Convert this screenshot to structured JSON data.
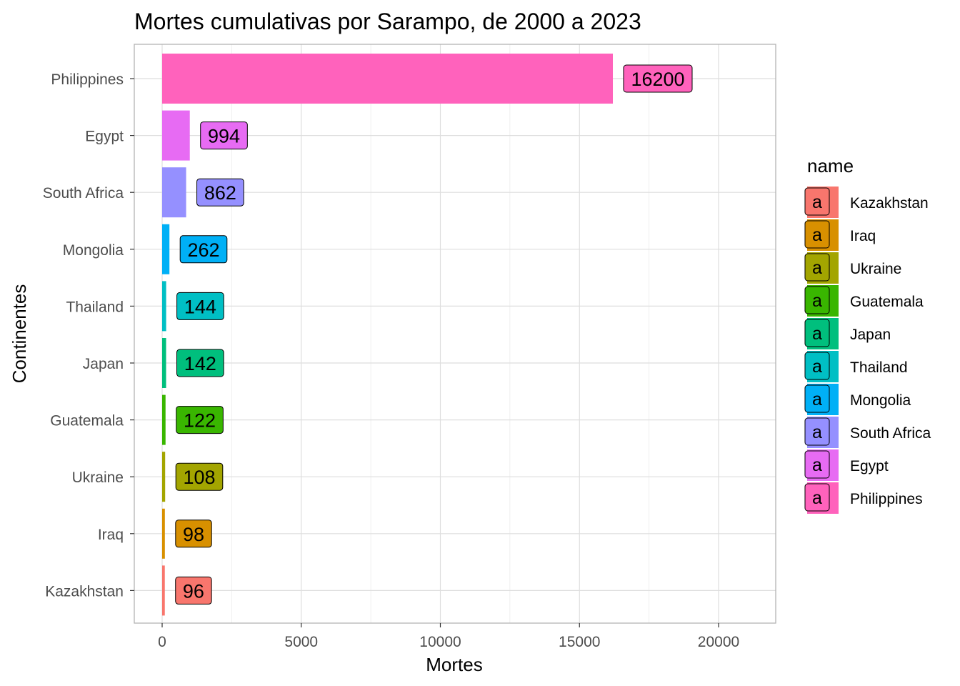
{
  "chart_data": {
    "type": "bar",
    "orientation": "horizontal",
    "title": "Mortes cumulativas por Sarampo, de 2000 a 2023",
    "xlabel": "Mortes",
    "ylabel": "Continentes",
    "xlim": [
      -1000,
      22000
    ],
    "xticks": [
      0,
      5000,
      10000,
      15000,
      20000
    ],
    "grid": true,
    "categories": [
      "Philippines",
      "Egypt",
      "South Africa",
      "Mongolia",
      "Thailand",
      "Japan",
      "Guatemala",
      "Ukraine",
      "Iraq",
      "Kazakhstan"
    ],
    "values": [
      16200,
      994,
      862,
      262,
      144,
      142,
      122,
      108,
      98,
      96
    ],
    "data_labels": [
      "16200",
      "994",
      "862",
      "262",
      "144",
      "142",
      "122",
      "108",
      "98",
      "96"
    ],
    "colors": {
      "Philippines": "#FF62BC",
      "Egypt": "#E76BF3",
      "South Africa": "#9590FF",
      "Mongolia": "#00B0F6",
      "Thailand": "#00BFC4",
      "Japan": "#00BF7D",
      "Guatemala": "#39B600",
      "Ukraine": "#A3A500",
      "Iraq": "#D89000",
      "Kazakhstan": "#F8766D"
    },
    "legend": {
      "title": "name",
      "placement": "right",
      "key_glyph": "a",
      "entries": [
        "Kazakhstan",
        "Iraq",
        "Ukraine",
        "Guatemala",
        "Japan",
        "Thailand",
        "Mongolia",
        "South Africa",
        "Egypt",
        "Philippines"
      ]
    }
  }
}
